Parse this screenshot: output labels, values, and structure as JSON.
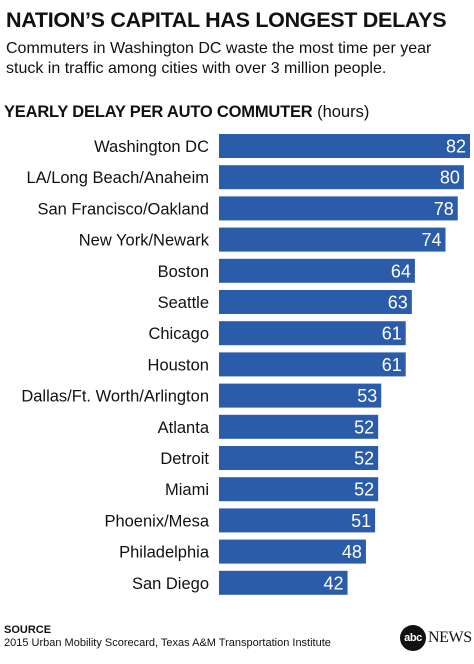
{
  "header": {
    "title": "NATION’S CAPITAL HAS LONGEST DELAYS",
    "subtitle_line1": "Commuters in Washington DC waste the most time per year",
    "subtitle_line2": "stuck in traffic among cities with over 3 million people."
  },
  "chart_heading": {
    "main": "YEARLY DELAY PER AUTO COMMUTER",
    "unit": "(hours)"
  },
  "chart_data": {
    "type": "bar",
    "orientation": "horizontal",
    "title": "YEARLY DELAY PER AUTO COMMUTER",
    "unit": "(hours)",
    "categories": [
      "Washington DC",
      "LA/Long Beach/Anaheim",
      "San Francisco/Oakland",
      "New York/Newark",
      "Boston",
      "Seattle",
      "Chicago",
      "Houston",
      "Dallas/Ft. Worth/Arlington",
      "Atlanta",
      "Detroit",
      "Miami",
      "Phoenix/Mesa",
      "Philadelphia",
      "San Diego"
    ],
    "values": [
      82,
      80,
      78,
      74,
      64,
      63,
      61,
      61,
      53,
      52,
      52,
      52,
      51,
      48,
      42
    ],
    "data_labels": [
      "82",
      "80",
      "78",
      "74",
      "64",
      "63",
      "61",
      "61",
      "53",
      "52",
      "52",
      "52",
      "51",
      "48",
      "42"
    ],
    "xlim": [
      0,
      82
    ],
    "grid": false,
    "bar_color": "#2a5caa",
    "label_color": "#ffffff"
  },
  "footer": {
    "source_label": "SOURCE",
    "source_text": "2015 Urban Mobility Scorecard, Texas A&M Transportation Institute",
    "logo_circle": "abc",
    "logo_text": "NEWS"
  }
}
